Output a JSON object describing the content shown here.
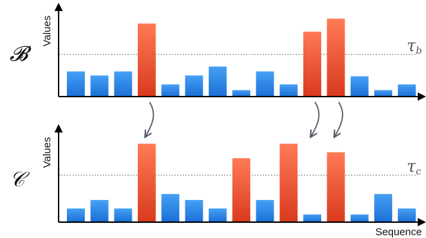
{
  "chart_data": [
    {
      "type": "bar",
      "panel_label": "𝓑",
      "ylabel": "Values",
      "xlabel": "",
      "threshold_label": "τ",
      "threshold_subscript": "b",
      "threshold": 5.2,
      "ylim": [
        0,
        10.2
      ],
      "values": [
        3.1,
        2.6,
        3.1,
        9.0,
        1.5,
        2.6,
        3.7,
        0.8,
        3.1,
        1.5,
        8.0,
        9.6,
        2.5,
        0.8,
        1.5
      ],
      "highlighted": [
        false,
        false,
        false,
        true,
        false,
        false,
        false,
        false,
        false,
        false,
        true,
        true,
        false,
        false,
        false
      ],
      "grid": false
    },
    {
      "type": "bar",
      "panel_label": "𝒞",
      "ylabel": "Values",
      "xlabel": "Sequence",
      "threshold_label": "τ",
      "threshold_subscript": "c",
      "threshold": 5.5,
      "ylim": [
        0,
        10.2
      ],
      "values": [
        1.6,
        2.6,
        1.6,
        9.2,
        3.3,
        2.6,
        1.6,
        7.5,
        2.6,
        9.2,
        0.9,
        8.2,
        0.9,
        3.3,
        1.6
      ],
      "highlighted": [
        false,
        false,
        false,
        true,
        false,
        false,
        false,
        true,
        false,
        true,
        false,
        true,
        false,
        false,
        false
      ],
      "grid": false
    }
  ],
  "arrows": [
    {
      "from_index": 3
    },
    {
      "from_index": 10
    },
    {
      "from_index": 11
    }
  ],
  "colors": {
    "normal_top": "#46a0f5",
    "normal_bottom": "#1a6fd6",
    "highlight_top": "#ff7a55",
    "highlight_bottom": "#d93a1e",
    "axis": "#000000",
    "threshold_line": "#777777",
    "arrow": "#555c66"
  }
}
